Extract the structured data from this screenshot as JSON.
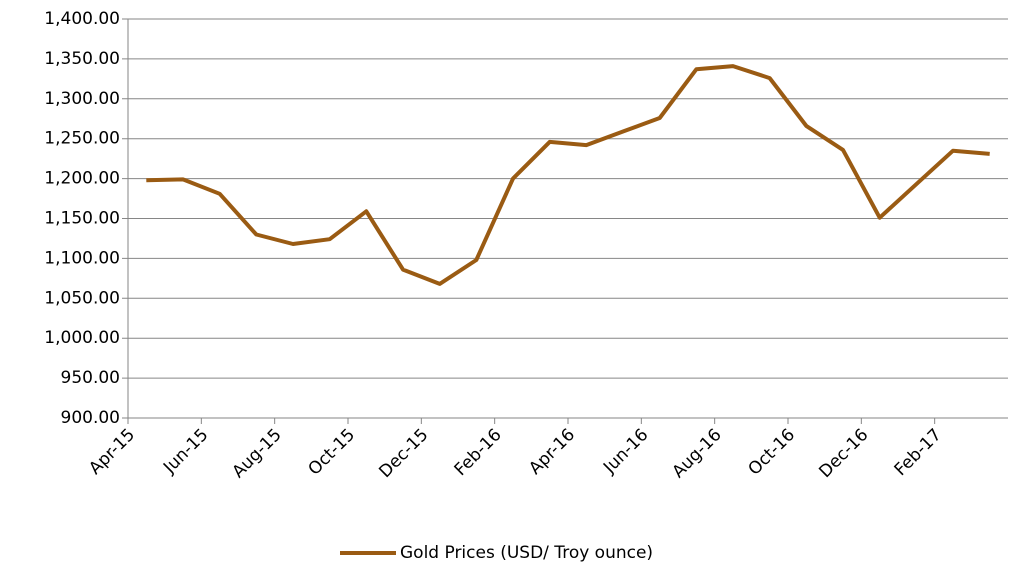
{
  "chart_data": {
    "type": "line",
    "categories": [
      "Apr-15",
      null,
      "Jun-15",
      null,
      "Aug-15",
      null,
      "Oct-15",
      null,
      "Dec-15",
      null,
      "Feb-16",
      null,
      "Apr-16",
      null,
      "Jun-16",
      null,
      "Aug-16",
      null,
      "Oct-16",
      null,
      "Dec-16",
      null,
      "Feb-17",
      null
    ],
    "series": [
      {
        "name": "Gold Prices (USD/ Troy ounce)",
        "color": "#9A5B13",
        "values": [
          1198,
          1199,
          1181,
          1130,
          1118,
          1124,
          1159,
          1086,
          1068,
          1098,
          1200,
          1246,
          1242,
          1259,
          1276,
          1337,
          1341,
          1326,
          1266,
          1236,
          1151,
          1193,
          1235,
          1231
        ]
      }
    ],
    "ylim": [
      900,
      1400
    ],
    "yticks": [
      {
        "value": 900,
        "label": "900.00"
      },
      {
        "value": 950,
        "label": "950.00"
      },
      {
        "value": 1000,
        "label": "1,000.00"
      },
      {
        "value": 1050,
        "label": "1,050.00"
      },
      {
        "value": 1100,
        "label": "1,100.00"
      },
      {
        "value": 1150,
        "label": "1,150.00"
      },
      {
        "value": 1200,
        "label": "1,200.00"
      },
      {
        "value": 1250,
        "label": "1,250.00"
      },
      {
        "value": 1300,
        "label": "1,300.00"
      },
      {
        "value": 1350,
        "label": "1,350.00"
      },
      {
        "value": 1400,
        "label": "1,400.00"
      }
    ],
    "grid": true
  }
}
